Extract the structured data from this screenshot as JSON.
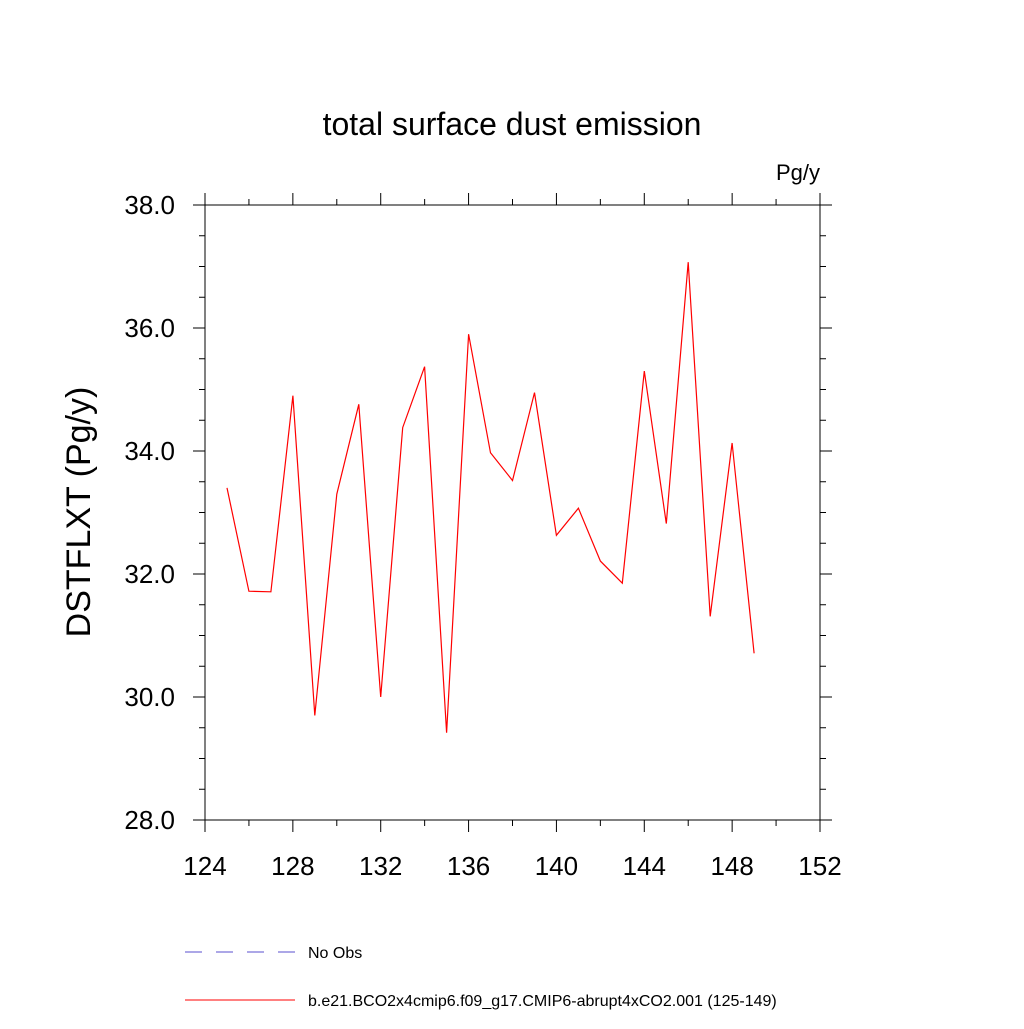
{
  "chart_data": {
    "type": "line",
    "title": "total surface dust emission",
    "units_label": "Pg/y",
    "xlabel": "",
    "ylabel": "DSTFLXT  (Pg/y)",
    "xlim": [
      124,
      152
    ],
    "ylim": [
      28.0,
      38.0
    ],
    "x_ticks": [
      124,
      128,
      132,
      136,
      140,
      144,
      148,
      152
    ],
    "x_tick_labels": [
      "124",
      "128",
      "132",
      "136",
      "140",
      "144",
      "148",
      "152"
    ],
    "y_ticks": [
      28.0,
      30.0,
      32.0,
      34.0,
      36.0,
      38.0
    ],
    "y_tick_labels": [
      "28.0",
      "30.0",
      "32.0",
      "34.0",
      "36.0",
      "38.0"
    ],
    "grid": false,
    "legend_position": "bottom",
    "series": [
      {
        "name": "b.e21.BCO2x4cmip6.f09_g17.CMIP6-abrupt4xCO2.001 (125-149)",
        "color": "#ff0000",
        "dash": "solid",
        "x": [
          125,
          126,
          127,
          128,
          129,
          130,
          131,
          132,
          133,
          134,
          135,
          136,
          137,
          138,
          139,
          140,
          141,
          142,
          143,
          144,
          145,
          146,
          147,
          148,
          149
        ],
        "values": [
          33.4,
          31.72,
          31.71,
          34.9,
          29.7,
          33.3,
          34.76,
          30.0,
          34.38,
          35.37,
          29.42,
          35.9,
          33.97,
          33.52,
          34.95,
          32.63,
          33.07,
          32.21,
          31.85,
          35.3,
          32.82,
          37.07,
          31.31,
          34.13,
          30.71
        ]
      }
    ],
    "legend": [
      {
        "label": "No Obs",
        "color": "#5a4fcf",
        "dash": "dashed"
      },
      {
        "label": "b.e21.BCO2x4cmip6.f09_g17.CMIP6-abrupt4xCO2.001 (125-149)",
        "color": "#ff0000",
        "dash": "solid"
      }
    ]
  }
}
